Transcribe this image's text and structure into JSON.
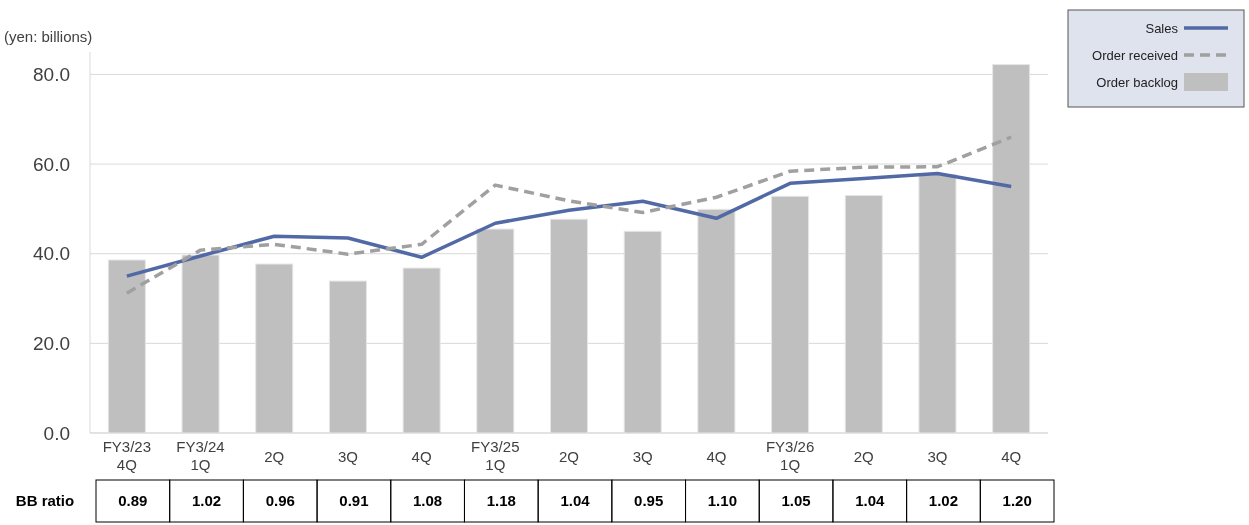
{
  "chart_data": {
    "type": "bar",
    "ylabel": "(yen: billions)",
    "categories": [
      "FY3/23\n4Q",
      "FY3/24\n1Q",
      "2Q",
      "3Q",
      "4Q",
      "FY3/25\n1Q",
      "2Q",
      "3Q",
      "4Q",
      "FY3/26\n1Q",
      "2Q",
      "3Q",
      "4Q"
    ],
    "series": [
      {
        "name": "Order backlog",
        "color": "#bfbfbf",
        "values": [
          38.6,
          39.7,
          37.7,
          33.9,
          36.8,
          45.5,
          47.7,
          45.0,
          49.9,
          52.8,
          53.0,
          57.7,
          82.2
        ]
      },
      {
        "name": "Sales",
        "type": "line",
        "color": "#5169a5",
        "line_style": "solid",
        "values": [
          35.0,
          39.5,
          43.9,
          43.5,
          39.2,
          46.8,
          49.7,
          51.7,
          47.9,
          55.7,
          56.8,
          57.9,
          55.0
        ]
      },
      {
        "name": "Order received",
        "type": "line",
        "color": "#a0a0a0",
        "line_style": "dashed",
        "values": [
          31.2,
          40.8,
          42.1,
          39.9,
          42.1,
          55.3,
          51.8,
          49.2,
          52.6,
          58.4,
          59.3,
          59.4,
          66.0
        ]
      }
    ],
    "ylim": [
      0,
      85
    ],
    "yticks": [
      {
        "value": 0,
        "label": "0.0"
      },
      {
        "value": 20,
        "label": "20.0"
      },
      {
        "value": 40,
        "label": "40.0"
      },
      {
        "value": 60,
        "label": "60.0"
      },
      {
        "value": 80,
        "label": "80.0"
      }
    ],
    "grid": "y",
    "legend": "top right",
    "annotations": [
      "BB ratio",
      "0.89",
      "1.02",
      "0.96",
      "0.91",
      "1.08",
      "1.18",
      "1.04",
      "0.95",
      "1.10",
      "1.05",
      "1.04",
      "1.02",
      "1.20"
    ]
  }
}
